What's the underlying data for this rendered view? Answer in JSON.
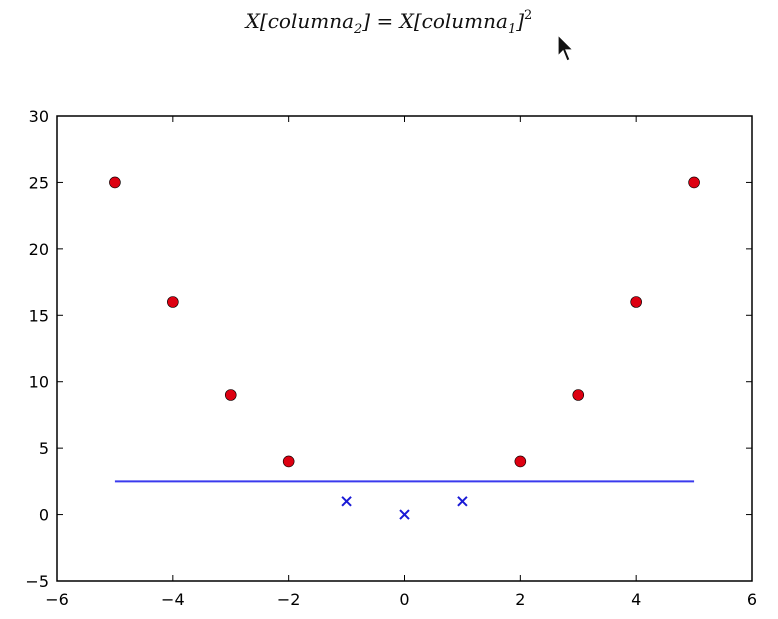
{
  "chart_data": {
    "type": "scatter",
    "title": {
      "lhs_prefix": "X[columna",
      "lhs_sub": "2",
      "lhs_suffix": "]",
      "eq": " = ",
      "rhs_prefix": "X[columna",
      "rhs_sub": "1",
      "rhs_suffix": "]",
      "rhs_sup": "2"
    },
    "xlabel": "",
    "ylabel": "",
    "xlim": [
      -6,
      6
    ],
    "ylim": [
      -5,
      30
    ],
    "xticks": [
      -6,
      -4,
      -2,
      0,
      2,
      4,
      6
    ],
    "xtick_labels": [
      "−6",
      "−4",
      "−2",
      "0",
      "2",
      "4",
      "6"
    ],
    "yticks": [
      -5,
      0,
      5,
      10,
      15,
      20,
      25,
      30
    ],
    "ytick_labels": [
      "−5",
      "0",
      "5",
      "10",
      "15",
      "20",
      "25",
      "30"
    ],
    "grid": false,
    "series": [
      {
        "marker": "circle",
        "color": "#dd0011",
        "x": [
          -5,
          -4,
          -3,
          -2,
          2,
          3,
          4,
          5
        ],
        "y": [
          25,
          16,
          9,
          4,
          4,
          9,
          16,
          25
        ]
      },
      {
        "marker": "x",
        "color": "#1a1ad6",
        "x": [
          -1,
          0,
          1
        ],
        "y": [
          1,
          0,
          1
        ]
      },
      {
        "marker": "line",
        "color": "#3a3aee",
        "x": [
          -5,
          5
        ],
        "y": [
          2.5,
          2.5
        ]
      }
    ]
  }
}
